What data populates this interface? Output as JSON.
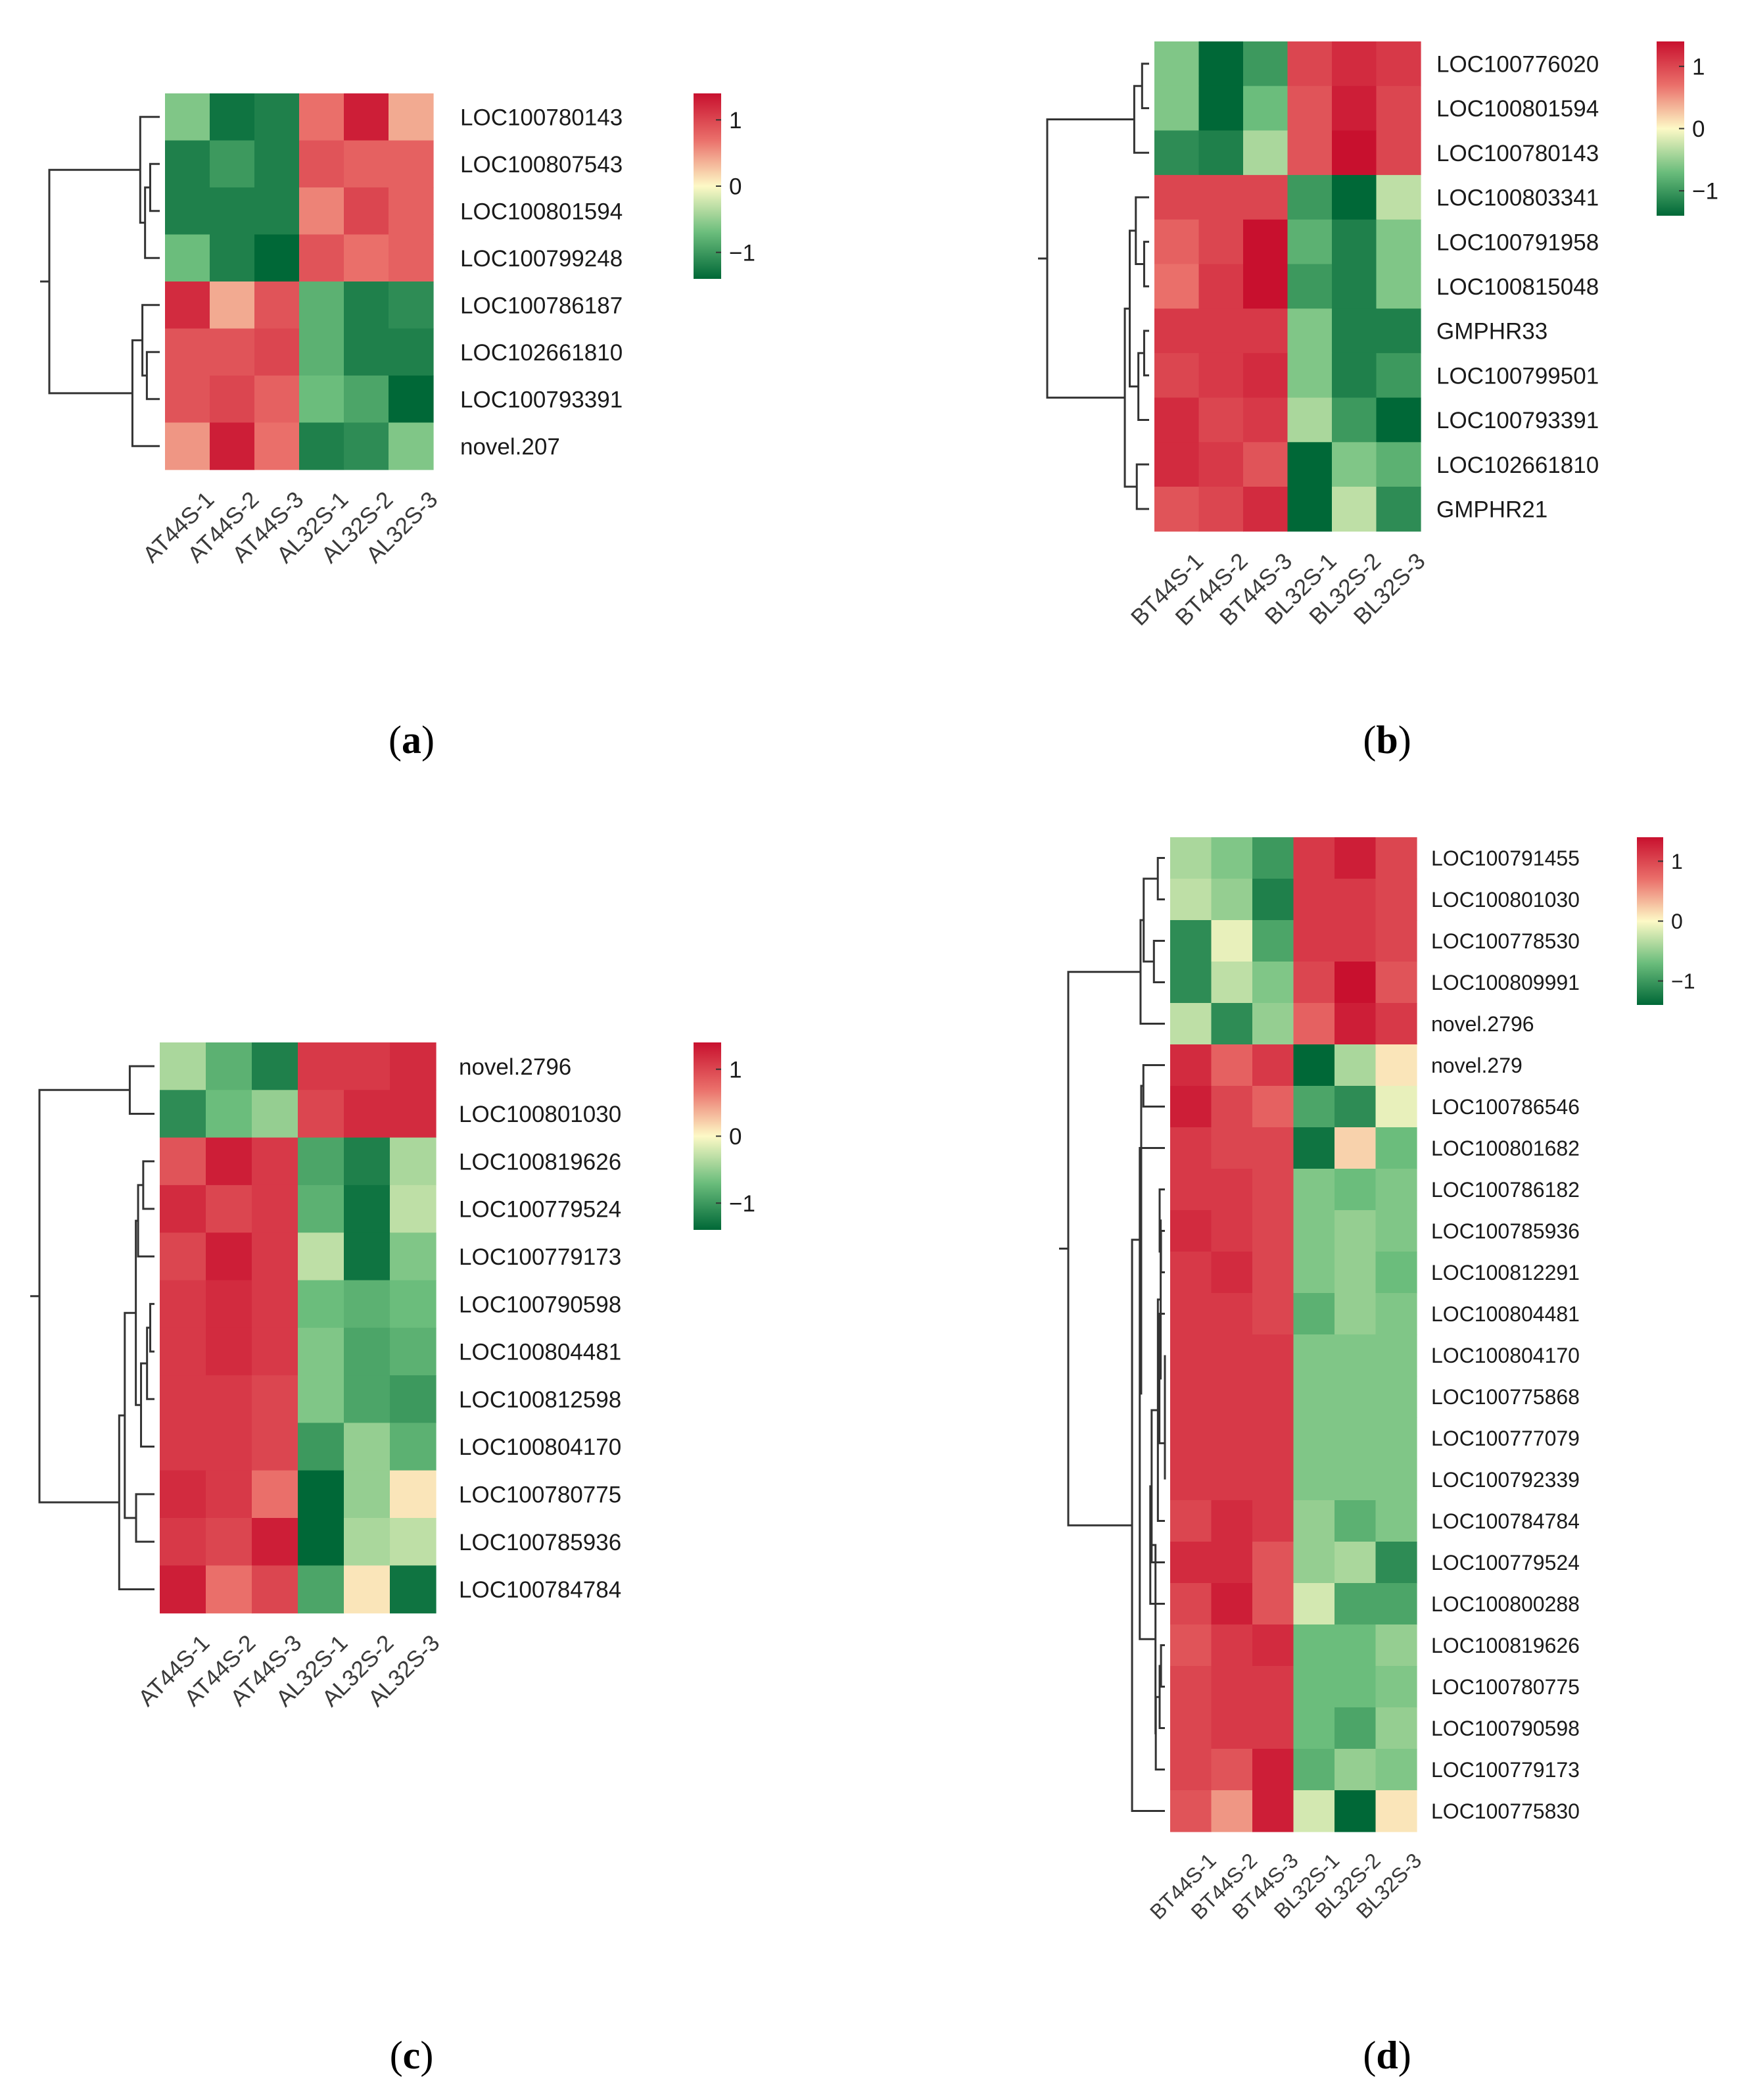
{
  "legend_ticks": [
    "1",
    "0",
    "−1"
  ],
  "chart_data": [
    {
      "type": "heatmap",
      "panel": "a",
      "caption": "(a)",
      "rows": [
        "LOC100780143",
        "LOC100807543",
        "LOC100801594",
        "LOC100799248",
        "LOC100786187",
        "LOC102661810",
        "LOC100793391",
        "novel.207"
      ],
      "columns": [
        "AT44S-1",
        "AT44S-2",
        "AT44S-3",
        "AL32S-1",
        "AL32S-2",
        "AL32S-3"
      ],
      "values": [
        [
          -0.6,
          -1.3,
          -1.2,
          0.7,
          1.3,
          0.4
        ],
        [
          -1.2,
          -1.0,
          -1.2,
          0.9,
          0.8,
          0.8
        ],
        [
          -1.2,
          -1.2,
          -1.2,
          0.6,
          1.0,
          0.8
        ],
        [
          -0.7,
          -1.2,
          -1.4,
          0.9,
          0.7,
          0.8
        ],
        [
          1.2,
          0.4,
          0.9,
          -0.8,
          -1.2,
          -1.1
        ],
        [
          0.9,
          0.9,
          1.0,
          -0.8,
          -1.2,
          -1.2
        ],
        [
          0.9,
          1.0,
          0.8,
          -0.7,
          -0.9,
          -1.6
        ],
        [
          0.5,
          1.3,
          0.7,
          -1.2,
          -1.1,
          -0.6
        ]
      ],
      "colorbar_range": [
        -1.4,
        1.4
      ]
    },
    {
      "type": "heatmap",
      "panel": "b",
      "caption": "(b)",
      "rows": [
        "LOC100776020",
        "LOC100801594",
        "LOC100780143",
        "LOC100803341",
        "LOC100791958",
        "LOC100815048",
        "GMPHR33",
        "LOC100799501",
        "LOC100793391",
        "LOC102661810",
        "GMPHR21"
      ],
      "columns": [
        "BT44S-1",
        "BT44S-2",
        "BT44S-3",
        "BL32S-1",
        "BL32S-2",
        "BL32S-3"
      ],
      "values": [
        [
          -0.6,
          -1.4,
          -1.0,
          1.0,
          1.2,
          1.1
        ],
        [
          -0.6,
          -1.4,
          -0.7,
          0.9,
          1.3,
          1.0
        ],
        [
          -1.1,
          -1.2,
          -0.4,
          0.9,
          1.4,
          1.0
        ],
        [
          1.0,
          1.0,
          1.0,
          -1.0,
          -1.5,
          -0.3
        ],
        [
          0.8,
          1.0,
          1.4,
          -0.8,
          -1.2,
          -0.6
        ],
        [
          0.7,
          1.1,
          1.4,
          -1.0,
          -1.2,
          -0.6
        ],
        [
          1.1,
          1.1,
          1.1,
          -0.6,
          -1.2,
          -1.2
        ],
        [
          1.0,
          1.1,
          1.2,
          -0.6,
          -1.2,
          -1.0
        ],
        [
          1.2,
          1.0,
          1.1,
          -0.4,
          -1.0,
          -1.5
        ],
        [
          1.2,
          1.1,
          0.9,
          -1.4,
          -0.6,
          -0.8
        ],
        [
          0.9,
          1.0,
          1.2,
          -1.4,
          -0.3,
          -1.1
        ]
      ],
      "colorbar_range": [
        -1.4,
        1.4
      ]
    },
    {
      "type": "heatmap",
      "panel": "c",
      "caption": "(c)",
      "rows": [
        "novel.2796",
        "LOC100801030",
        "LOC100819626",
        "LOC100779524",
        "LOC100779173",
        "LOC100790598",
        "LOC100804481",
        "LOC100812598",
        "LOC100804170",
        "LOC100780775",
        "LOC100785936",
        "LOC100784784"
      ],
      "columns": [
        "AT44S-1",
        "AT44S-2",
        "AT44S-3",
        "AL32S-1",
        "AL32S-2",
        "AL32S-3"
      ],
      "values": [
        [
          -0.4,
          -0.8,
          -1.2,
          1.1,
          1.1,
          1.2
        ],
        [
          -1.1,
          -0.7,
          -0.5,
          1.0,
          1.2,
          1.2
        ],
        [
          0.9,
          1.3,
          1.1,
          -0.9,
          -1.2,
          -0.4
        ],
        [
          1.2,
          1.0,
          1.1,
          -0.8,
          -1.3,
          -0.3
        ],
        [
          1.0,
          1.3,
          1.1,
          -0.3,
          -1.3,
          -0.6
        ],
        [
          1.1,
          1.2,
          1.1,
          -0.7,
          -0.8,
          -0.7
        ],
        [
          1.1,
          1.2,
          1.1,
          -0.6,
          -0.9,
          -0.8
        ],
        [
          1.1,
          1.1,
          1.0,
          -0.6,
          -0.9,
          -1.0
        ],
        [
          1.1,
          1.1,
          1.0,
          -1.0,
          -0.5,
          -0.8
        ],
        [
          1.2,
          1.1,
          0.7,
          -1.5,
          -0.5,
          0.1
        ],
        [
          1.1,
          1.0,
          1.3,
          -1.4,
          -0.4,
          -0.3
        ],
        [
          1.3,
          0.7,
          1.0,
          -0.9,
          0.1,
          -1.3
        ]
      ],
      "colorbar_range": [
        -1.4,
        1.4
      ]
    },
    {
      "type": "heatmap",
      "panel": "d",
      "caption": "(d)",
      "rows": [
        "LOC100791455",
        "LOC100801030",
        "LOC100778530",
        "LOC100809991",
        "novel.2796",
        "novel.279",
        "LOC100786546",
        "LOC100801682",
        "LOC100786182",
        "LOC100785936",
        "LOC100812291",
        "LOC100804481",
        "LOC100804170",
        "LOC100775868",
        "LOC100777079",
        "LOC100792339",
        "LOC100784784",
        "LOC100779524",
        "LOC100800288",
        "LOC100819626",
        "LOC100780775",
        "LOC100790598",
        "LOC100779173",
        "LOC100775830"
      ],
      "columns": [
        "BT44S-1",
        "BT44S-2",
        "BT44S-3",
        "BL32S-1",
        "BL32S-2",
        "BL32S-3"
      ],
      "values": [
        [
          -0.4,
          -0.6,
          -1.0,
          1.1,
          1.3,
          1.0
        ],
        [
          -0.3,
          -0.5,
          -1.2,
          1.1,
          1.1,
          1.0
        ],
        [
          -1.1,
          -0.1,
          -0.9,
          1.1,
          1.1,
          1.0
        ],
        [
          -1.1,
          -0.3,
          -0.6,
          1.0,
          1.4,
          0.9
        ],
        [
          -0.3,
          -1.1,
          -0.5,
          0.8,
          1.3,
          1.1
        ],
        [
          1.2,
          0.8,
          1.1,
          -1.4,
          -0.4,
          0.1
        ],
        [
          1.3,
          1.0,
          0.8,
          -0.9,
          -1.1,
          -0.1
        ],
        [
          1.1,
          1.0,
          1.0,
          -1.3,
          0.2,
          -0.7
        ],
        [
          1.1,
          1.1,
          1.0,
          -0.6,
          -0.7,
          -0.6
        ],
        [
          1.2,
          1.1,
          1.0,
          -0.6,
          -0.5,
          -0.6
        ],
        [
          1.1,
          1.2,
          1.0,
          -0.6,
          -0.5,
          -0.7
        ],
        [
          1.1,
          1.1,
          1.0,
          -0.8,
          -0.5,
          -0.6
        ],
        [
          1.1,
          1.1,
          1.1,
          -0.6,
          -0.6,
          -0.6
        ],
        [
          1.1,
          1.1,
          1.1,
          -0.6,
          -0.6,
          -0.6
        ],
        [
          1.1,
          1.1,
          1.1,
          -0.6,
          -0.6,
          -0.6
        ],
        [
          1.1,
          1.1,
          1.1,
          -0.6,
          -0.6,
          -0.6
        ],
        [
          1.0,
          1.2,
          1.1,
          -0.5,
          -0.8,
          -0.6
        ],
        [
          1.2,
          1.2,
          0.9,
          -0.5,
          -0.4,
          -1.1
        ],
        [
          1.0,
          1.3,
          0.9,
          -0.2,
          -0.9,
          -0.9
        ],
        [
          0.9,
          1.1,
          1.2,
          -0.7,
          -0.7,
          -0.5
        ],
        [
          1.0,
          1.1,
          1.1,
          -0.7,
          -0.7,
          -0.6
        ],
        [
          1.0,
          1.1,
          1.1,
          -0.7,
          -0.9,
          -0.5
        ],
        [
          1.0,
          0.9,
          1.3,
          -0.8,
          -0.5,
          -0.6
        ],
        [
          0.9,
          0.5,
          1.3,
          -0.2,
          -1.5,
          0.1
        ]
      ],
      "colorbar_range": [
        -1.4,
        1.4
      ]
    }
  ]
}
